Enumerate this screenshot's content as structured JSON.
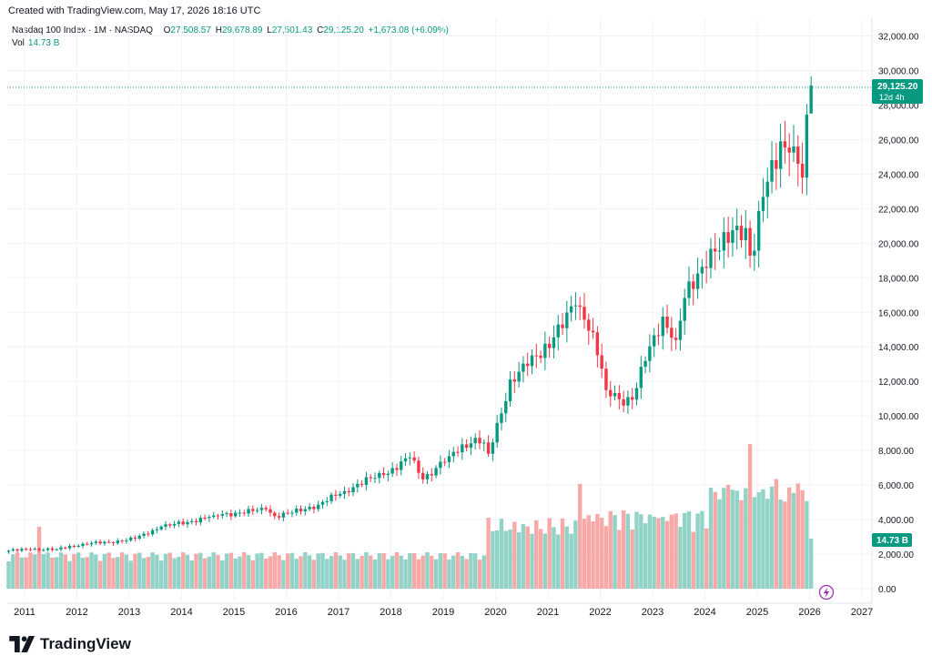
{
  "header": {
    "created": "Created with TradingView.com, May 17, 2026 18:16 UTC"
  },
  "legend": {
    "symbol": "Nasdaq 100 Index · 1M · NASDAQ",
    "o_label": "O",
    "o": "27,508.57",
    "h_label": "H",
    "h": "29,678.89",
    "l_label": "L",
    "l": "27,501.43",
    "c_label": "C",
    "c": "29,125.20",
    "change": "+1,673.08 (+6.09%)",
    "vol_label": "Vol",
    "vol": "14.73 B"
  },
  "badges": {
    "price": "29,125.20",
    "countdown": "12d 4h",
    "volume": "14.73 B"
  },
  "brand": "TradingView",
  "colors": {
    "up": "#089981",
    "down": "#f23645",
    "vol_up": "#91d3c6",
    "vol_down": "#f7a9a7",
    "grid": "#f0f3fa",
    "pricebadge": "#089981"
  },
  "chart_data": {
    "type": "candlestick",
    "timeframe": "1M",
    "x_axis_years": [
      "2011",
      "2012",
      "2013",
      "2014",
      "2015",
      "2016",
      "2017",
      "2018",
      "2019",
      "2020",
      "2021",
      "2022",
      "2023",
      "2024",
      "2025",
      "2026",
      "2027"
    ],
    "y_ticks": [
      "0.00",
      "2,000.00",
      "4,000.00",
      "6,000.00",
      "8,000.00",
      "10,000.00",
      "12,000.00",
      "14,000.00",
      "16,000.00",
      "18,000.00",
      "20,000.00",
      "22,000.00",
      "24,000.00",
      "26,000.00",
      "28,000.00",
      "30,000.00",
      "32,000.00"
    ],
    "ylim": [
      0,
      32000
    ],
    "x_start": "2011-01",
    "close_points": [
      [
        "2011-01",
        2200
      ],
      [
        "2011-06",
        2280
      ],
      [
        "2011-12",
        2280
      ],
      [
        "2012-06",
        2600
      ],
      [
        "2012-12",
        2680
      ],
      [
        "2013-06",
        2900
      ],
      [
        "2013-12",
        3590
      ],
      [
        "2014-06",
        3850
      ],
      [
        "2014-12",
        4240
      ],
      [
        "2015-06",
        4400
      ],
      [
        "2015-12",
        4600
      ],
      [
        "2016-02",
        4200
      ],
      [
        "2016-06",
        4400
      ],
      [
        "2016-12",
        4860
      ],
      [
        "2017-06",
        5650
      ],
      [
        "2017-12",
        6400
      ],
      [
        "2018-03",
        6580
      ],
      [
        "2018-09",
        7600
      ],
      [
        "2018-12",
        6330
      ],
      [
        "2019-06",
        7670
      ],
      [
        "2019-12",
        8730
      ],
      [
        "2020-02",
        8460
      ],
      [
        "2020-03",
        7810
      ],
      [
        "2020-06",
        10150
      ],
      [
        "2020-08",
        12110
      ],
      [
        "2020-12",
        12890
      ],
      [
        "2021-06",
        14550
      ],
      [
        "2021-11",
        16400
      ],
      [
        "2021-12",
        16320
      ],
      [
        "2022-03",
        14840
      ],
      [
        "2022-06",
        11500
      ],
      [
        "2022-09",
        10970
      ],
      [
        "2022-12",
        10940
      ],
      [
        "2023-03",
        13180
      ],
      [
        "2023-07",
        15750
      ],
      [
        "2023-10",
        14400
      ],
      [
        "2023-12",
        16830
      ],
      [
        "2024-03",
        18250
      ],
      [
        "2024-06",
        19680
      ],
      [
        "2024-08",
        19570
      ],
      [
        "2024-12",
        21010
      ],
      [
        "2025-02",
        20880
      ],
      [
        "2025-03",
        19280
      ],
      [
        "2025-04",
        19570
      ],
      [
        "2025-06",
        22680
      ],
      [
        "2025-10",
        25900
      ],
      [
        "2025-12",
        25250
      ],
      [
        "2026-01",
        25600
      ],
      [
        "2026-02",
        24600
      ],
      [
        "2026-03",
        23800
      ],
      [
        "2026-04",
        27450
      ],
      [
        "2026-05",
        29125.2
      ]
    ],
    "last": {
      "open": 27508.57,
      "high": 29678.89,
      "low": 27501.43,
      "close": 29125.2,
      "change": 1673.08,
      "change_pct": 6.09
    }
  }
}
